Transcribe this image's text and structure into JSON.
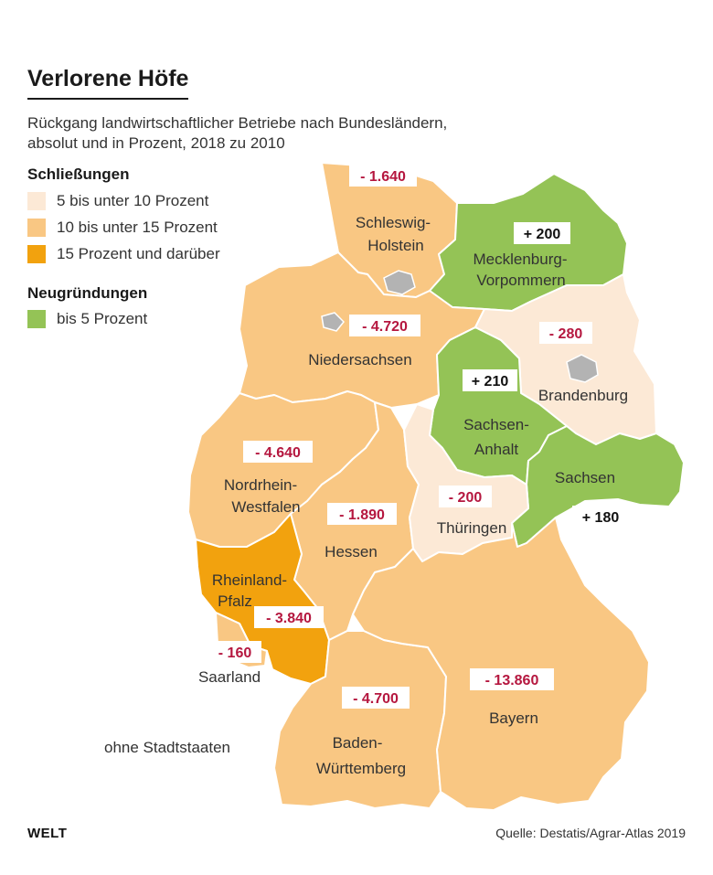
{
  "header": {
    "title": "Verlorene Höfe",
    "subtitle_line1": "Rückgang landwirtschaftlicher Betriebe nach Bundesländern,",
    "subtitle_line2": "absolut und in Prozent, 2018 zu 2010"
  },
  "legend": {
    "closures_heading": "Schließungen",
    "closures": [
      {
        "label": "5 bis unter 10 Prozent",
        "color": "#fce9d6"
      },
      {
        "label": "10 bis unter 15 Prozent",
        "color": "#f9c783"
      },
      {
        "label": "15 Prozent und darüber",
        "color": "#f2a20e"
      }
    ],
    "new_heading": "Neugründungen",
    "new": [
      {
        "label": "bis 5 Prozent",
        "color": "#94c356"
      }
    ]
  },
  "colors": {
    "cat_light": "#fce9d6",
    "cat_medium": "#f9c783",
    "cat_dark": "#f2a20e",
    "cat_green": "#94c356",
    "city_states": "#b3b3b3",
    "negative_value": "#b5173f"
  },
  "states": {
    "sh": {
      "name_line1": "Schleswig-",
      "name_line2": "Holstein",
      "value": "- 1.640",
      "category": "cat_medium"
    },
    "mv": {
      "name_line1": "Mecklenburg-",
      "name_line2": "Vorpommern",
      "value": "+ 200",
      "category": "cat_green"
    },
    "ni": {
      "name_line1": "Niedersachsen",
      "name_line2": "",
      "value": "- 4.720",
      "category": "cat_medium"
    },
    "bb": {
      "name_line1": "Brandenburg",
      "name_line2": "",
      "value": "- 280",
      "category": "cat_light"
    },
    "st": {
      "name_line1": "Sachsen-",
      "name_line2": "Anhalt",
      "value": "+ 210",
      "category": "cat_green"
    },
    "nw": {
      "name_line1": "Nordrhein-",
      "name_line2": "Westfalen",
      "value": "- 4.640",
      "category": "cat_medium"
    },
    "sn": {
      "name_line1": "Sachsen",
      "name_line2": "",
      "value": "+ 180",
      "category": "cat_green"
    },
    "he": {
      "name_line1": "Hessen",
      "name_line2": "",
      "value": "- 1.890",
      "category": "cat_medium"
    },
    "th": {
      "name_line1": "Thüringen",
      "name_line2": "",
      "value": "- 200",
      "category": "cat_light"
    },
    "rp": {
      "name_line1": "Rheinland-",
      "name_line2": "Pfalz",
      "value": "- 3.840",
      "category": "cat_dark"
    },
    "sl": {
      "name_line1": "Saarland",
      "name_line2": "",
      "value": "- 160",
      "category": "cat_medium"
    },
    "bw": {
      "name_line1": "Baden-",
      "name_line2": "Württemberg",
      "value": "- 4.700",
      "category": "cat_medium"
    },
    "by": {
      "name_line1": "Bayern",
      "name_line2": "",
      "value": "- 13.860",
      "category": "cat_medium"
    }
  },
  "note": "ohne Stadtstaaten",
  "brand": "WELT",
  "source": "Quelle: Destatis/Agrar-Atlas 2019"
}
